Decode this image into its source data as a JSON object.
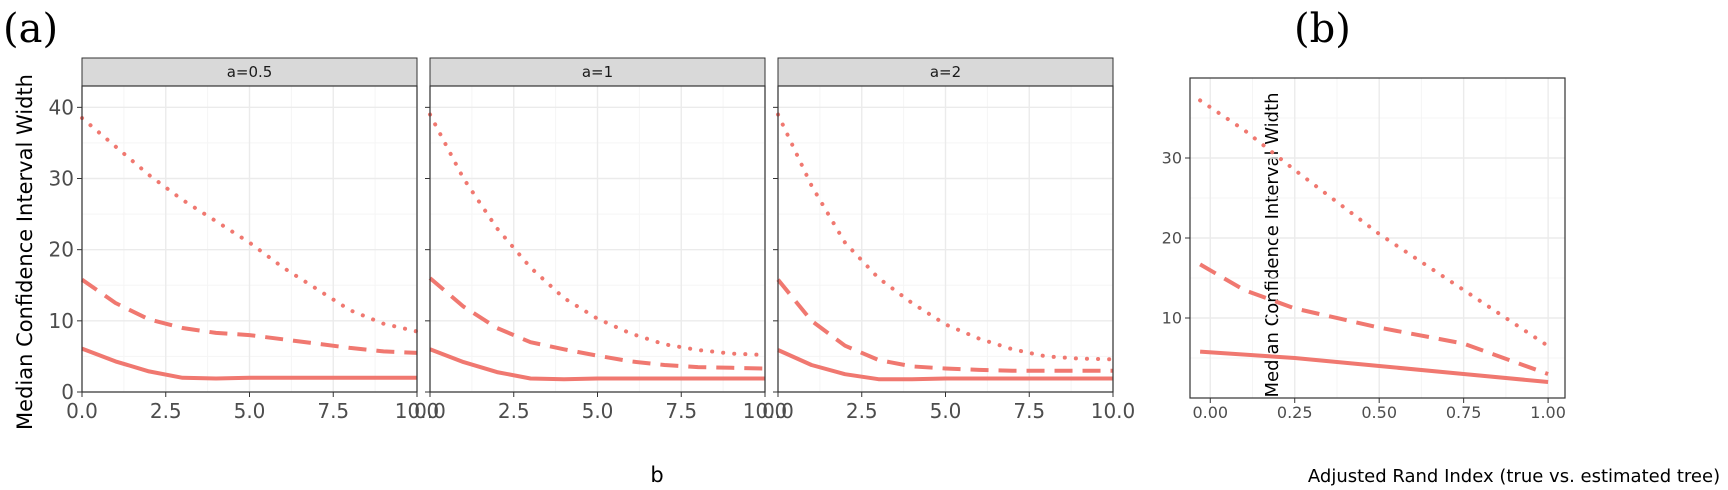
{
  "panel_labels": {
    "a": "(a)",
    "b": "(b)"
  },
  "colors": {
    "series": "#F07870",
    "strip_bg": "#D9D9D9",
    "grid_major": "#EBEBEB",
    "grid_minor": "#F5F5F5",
    "border": "#333333"
  },
  "chart_data": [
    {
      "type": "line",
      "facet_label": "a=0.5",
      "xlabel": "b",
      "ylabel": "Median Confidence Interval Width",
      "xlim": [
        0,
        10
      ],
      "ylim": [
        0,
        43
      ],
      "xticks": [
        0,
        2.5,
        5,
        7.5,
        10
      ],
      "xtick_labels": [
        "0.0",
        "2.5",
        "5.0",
        "7.5",
        "10.0"
      ],
      "yticks": [
        0,
        10,
        20,
        30,
        40
      ],
      "ytick_labels": [
        "0",
        "10",
        "20",
        "30",
        "40"
      ],
      "grid": true,
      "series": [
        {
          "style": "dotted",
          "x": [
            0,
            1,
            2,
            3,
            4,
            5,
            6,
            7,
            8,
            9,
            10
          ],
          "y": [
            38.5,
            34.5,
            30.5,
            27,
            24,
            21,
            17.5,
            14.5,
            11.5,
            9.6,
            8.5
          ]
        },
        {
          "style": "dashed",
          "x": [
            0,
            1,
            2,
            3,
            4,
            5,
            6,
            7,
            8,
            9,
            10
          ],
          "y": [
            15.8,
            12.5,
            10.2,
            9.0,
            8.3,
            8.0,
            7.4,
            6.8,
            6.2,
            5.7,
            5.5
          ]
        },
        {
          "style": "solid",
          "x": [
            0,
            1,
            2,
            3,
            4,
            5,
            6,
            7,
            8,
            9,
            10
          ],
          "y": [
            6.1,
            4.3,
            2.9,
            2.0,
            1.9,
            2.0,
            2.0,
            2.0,
            2.0,
            2.0,
            2.0
          ]
        }
      ]
    },
    {
      "type": "line",
      "facet_label": "a=1",
      "xlabel": "b",
      "ylabel": "Median Confidence Interval Width",
      "xlim": [
        0,
        10
      ],
      "ylim": [
        0,
        43
      ],
      "xticks": [
        0,
        2.5,
        5,
        7.5,
        10
      ],
      "xtick_labels": [
        "0.0",
        "2.5",
        "5.0",
        "7.5",
        "10.0"
      ],
      "yticks": [
        0,
        10,
        20,
        30,
        40
      ],
      "ytick_labels": [
        "0",
        "10",
        "20",
        "30",
        "40"
      ],
      "grid": true,
      "series": [
        {
          "style": "dotted",
          "x": [
            0,
            1,
            2,
            3,
            4,
            5,
            6,
            7,
            8,
            9,
            10
          ],
          "y": [
            39,
            30,
            23,
            17.5,
            13.2,
            10.3,
            8.2,
            6.7,
            5.9,
            5.4,
            5.2
          ]
        },
        {
          "style": "dashed",
          "x": [
            0,
            1,
            2,
            3,
            4,
            5,
            6,
            7,
            8,
            9,
            10
          ],
          "y": [
            16,
            12,
            9,
            7,
            6,
            5.1,
            4.3,
            3.8,
            3.5,
            3.4,
            3.3
          ]
        },
        {
          "style": "solid",
          "x": [
            0,
            1,
            2,
            3,
            4,
            5,
            6,
            7,
            8,
            9,
            10
          ],
          "y": [
            6.0,
            4.2,
            2.8,
            1.9,
            1.8,
            1.9,
            1.9,
            1.9,
            1.9,
            1.9,
            1.9
          ]
        }
      ]
    },
    {
      "type": "line",
      "facet_label": "a=2",
      "xlabel": "b",
      "ylabel": "Median Confidence Interval Width",
      "xlim": [
        0,
        10
      ],
      "ylim": [
        0,
        43
      ],
      "xticks": [
        0,
        2.5,
        5,
        7.5,
        10
      ],
      "xtick_labels": [
        "0.0",
        "2.5",
        "5.0",
        "7.5",
        "10.0"
      ],
      "yticks": [
        0,
        10,
        20,
        30,
        40
      ],
      "ytick_labels": [
        "0",
        "10",
        "20",
        "30",
        "40"
      ],
      "grid": true,
      "series": [
        {
          "style": "dotted",
          "x": [
            0,
            1,
            2,
            3,
            4,
            5,
            6,
            7,
            8,
            9,
            10
          ],
          "y": [
            39,
            29,
            21,
            16,
            12.5,
            9.5,
            7.5,
            6.0,
            5.0,
            4.7,
            4.6
          ]
        },
        {
          "style": "dashed",
          "x": [
            0,
            1,
            2,
            3,
            4,
            5,
            6,
            7,
            8,
            9,
            10
          ],
          "y": [
            15.8,
            10,
            6.5,
            4.5,
            3.6,
            3.3,
            3.1,
            3.0,
            3.0,
            3.0,
            3.0
          ]
        },
        {
          "style": "solid",
          "x": [
            0,
            1,
            2,
            3,
            4,
            5,
            6,
            7,
            8,
            9,
            10
          ],
          "y": [
            5.9,
            3.8,
            2.5,
            1.8,
            1.8,
            1.9,
            1.9,
            1.9,
            1.9,
            1.9,
            1.9
          ]
        }
      ]
    },
    {
      "type": "line",
      "xlabel": "Adjusted Rand Index (true vs. estimated tree)",
      "ylabel": "Median Confidence Interval Width",
      "xlim": [
        -0.06,
        1.05
      ],
      "ylim": [
        0,
        40
      ],
      "xticks": [
        0,
        0.25,
        0.5,
        0.75,
        1
      ],
      "xtick_labels": [
        "0.00",
        "0.25",
        "0.50",
        "0.75",
        "1.00"
      ],
      "yticks": [
        10,
        20,
        30
      ],
      "ytick_labels": [
        "10",
        "20",
        "30"
      ],
      "grid": true,
      "series": [
        {
          "style": "dotted",
          "x": [
            -0.03,
            0.1,
            0.25,
            0.5,
            0.75,
            1.0
          ],
          "y": [
            37.2,
            33.5,
            28.5,
            20.5,
            13.5,
            6.5
          ]
        },
        {
          "style": "dashed",
          "x": [
            -0.03,
            0.1,
            0.25,
            0.5,
            0.75,
            1.0
          ],
          "y": [
            16.7,
            13.5,
            11.2,
            8.8,
            6.8,
            3.0
          ]
        },
        {
          "style": "solid",
          "x": [
            -0.03,
            0.25,
            0.5,
            0.75,
            1.0
          ],
          "y": [
            5.8,
            5.0,
            4.0,
            3.0,
            2.0
          ]
        }
      ]
    }
  ]
}
